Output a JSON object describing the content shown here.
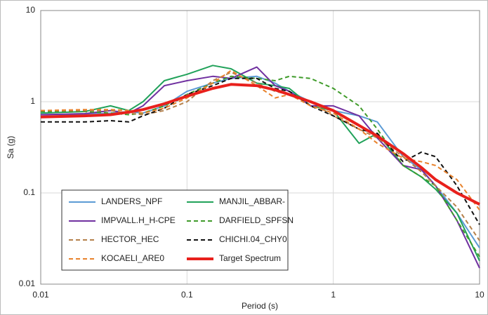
{
  "chart_data": {
    "type": "line",
    "x_label": "Period (s)",
    "y_label": "Sa (g)",
    "log_x": true,
    "log_y": true,
    "grid": true,
    "legend": "lower left",
    "xlim": [
      0.01,
      10
    ],
    "ylim": [
      0.01,
      10
    ],
    "xticks": [
      0.01,
      0.1,
      1,
      10
    ],
    "yticks": [
      0.01,
      0.1,
      1,
      10
    ],
    "x": [
      0.01,
      0.02,
      0.03,
      0.04,
      0.05,
      0.07,
      0.1,
      0.15,
      0.2,
      0.3,
      0.4,
      0.5,
      0.7,
      1,
      1.5,
      2,
      3,
      4,
      5,
      7,
      10
    ],
    "series": [
      {
        "name": "LANDERS_NPF",
        "color": "#5b9bd5",
        "dash": false,
        "width": 2,
        "values": [
          0.72,
          0.73,
          0.75,
          0.78,
          0.75,
          0.9,
          1.3,
          1.6,
          1.8,
          1.9,
          1.6,
          1.3,
          1.0,
          0.8,
          0.7,
          0.6,
          0.25,
          0.18,
          0.12,
          0.06,
          0.025
        ]
      },
      {
        "name": "MANJIL_ABBAR-",
        "color": "#21a25a",
        "dash": false,
        "width": 2,
        "values": [
          0.75,
          0.78,
          0.9,
          0.8,
          1.0,
          1.7,
          2.0,
          2.5,
          2.3,
          1.6,
          1.5,
          1.4,
          0.9,
          0.8,
          0.35,
          0.45,
          0.2,
          0.15,
          0.11,
          0.06,
          0.018
        ]
      },
      {
        "name": "IMPVALL.H_H-CPE",
        "color": "#7030a0",
        "dash": false,
        "width": 2,
        "values": [
          0.72,
          0.74,
          0.8,
          0.75,
          0.9,
          1.5,
          1.7,
          1.9,
          1.8,
          2.4,
          1.5,
          1.3,
          0.9,
          0.9,
          0.7,
          0.4,
          0.2,
          0.18,
          0.12,
          0.05,
          0.015
        ]
      },
      {
        "name": "DARFIELD_SPFSN",
        "color": "#3f9b2a",
        "dash": true,
        "width": 2,
        "values": [
          0.78,
          0.78,
          0.75,
          0.72,
          0.75,
          0.9,
          1.2,
          1.6,
          1.9,
          1.8,
          1.7,
          1.9,
          1.8,
          1.4,
          0.9,
          0.5,
          0.2,
          0.15,
          0.12,
          0.05,
          0.02
        ]
      },
      {
        "name": "HECTOR_HEC",
        "color": "#b5804a",
        "dash": true,
        "width": 2,
        "values": [
          0.8,
          0.8,
          0.8,
          0.75,
          0.72,
          0.8,
          1.0,
          1.7,
          2.1,
          1.6,
          1.3,
          1.2,
          1.0,
          0.7,
          0.5,
          0.4,
          0.25,
          0.17,
          0.12,
          0.07,
          0.03
        ]
      },
      {
        "name": "CHICHI.04_CHY0",
        "color": "#111111",
        "dash": true,
        "width": 2,
        "values": [
          0.6,
          0.6,
          0.62,
          0.6,
          0.7,
          0.85,
          1.2,
          1.5,
          1.8,
          1.8,
          1.4,
          1.3,
          0.9,
          0.7,
          0.5,
          0.45,
          0.22,
          0.28,
          0.25,
          0.12,
          0.045
        ]
      },
      {
        "name": "KOCAELI_ARE0",
        "color": "#e8822c",
        "dash": true,
        "width": 2,
        "values": [
          0.8,
          0.82,
          0.82,
          0.8,
          0.75,
          0.85,
          1.1,
          1.6,
          2.2,
          1.5,
          1.1,
          1.2,
          0.9,
          0.75,
          0.5,
          0.35,
          0.24,
          0.22,
          0.2,
          0.14,
          0.065
        ]
      },
      {
        "name": "Target Spectrum",
        "color": "#e8201c",
        "dash": false,
        "width": 4,
        "values": [
          0.68,
          0.7,
          0.72,
          0.77,
          0.82,
          0.95,
          1.15,
          1.4,
          1.55,
          1.5,
          1.35,
          1.2,
          1.0,
          0.8,
          0.55,
          0.42,
          0.27,
          0.19,
          0.14,
          0.1,
          0.075
        ]
      }
    ]
  }
}
